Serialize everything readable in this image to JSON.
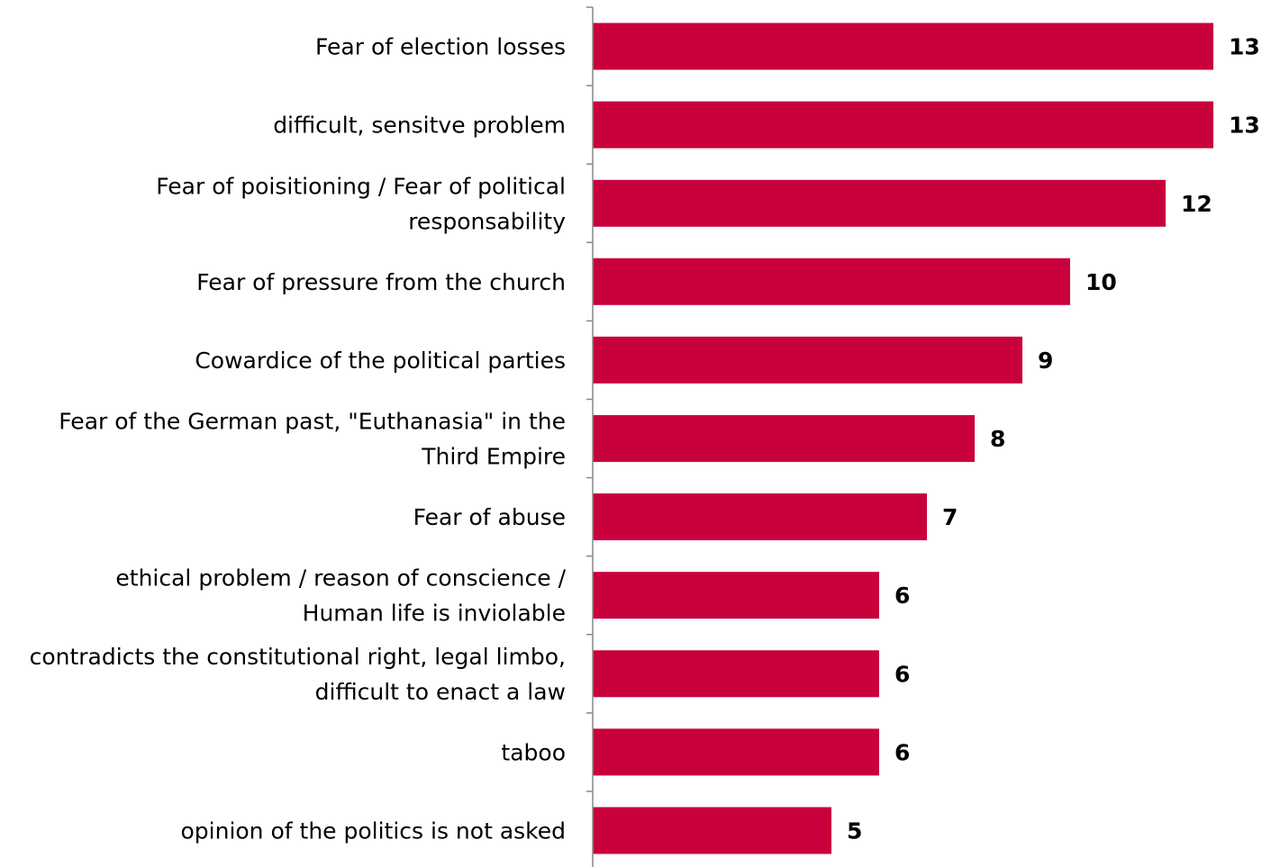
{
  "chart_data": {
    "type": "bar",
    "orientation": "horizontal",
    "categories": [
      [
        "Fear of election losses"
      ],
      [
        "difficult, sensitve problem"
      ],
      [
        "Fear of poisitioning / Fear of political",
        "responsability"
      ],
      [
        "Fear of pressure from the church"
      ],
      [
        "Cowardice of the political parties"
      ],
      [
        "Fear of the German past, \"Euthanasia\" in the",
        "Third Empire"
      ],
      [
        "Fear of abuse"
      ],
      [
        "ethical problem / reason of conscience /",
        "Human life is inviolable"
      ],
      [
        "contradicts the constitutional right, legal limbo,",
        "difficult to enact a law"
      ],
      [
        "taboo"
      ],
      [
        "opinion of the politics is not asked"
      ]
    ],
    "values": [
      13,
      13,
      12,
      10,
      9,
      8,
      7,
      6,
      6,
      6,
      5
    ],
    "value_labels": [
      "13",
      "13",
      "12",
      "10",
      "9",
      "8",
      "7",
      "6",
      "6",
      "6",
      "5"
    ],
    "bar_color": "#c8003c",
    "axis_color": "#888888",
    "grid": false,
    "legend": "none",
    "title": "",
    "xlabel": "",
    "ylabel": ""
  }
}
